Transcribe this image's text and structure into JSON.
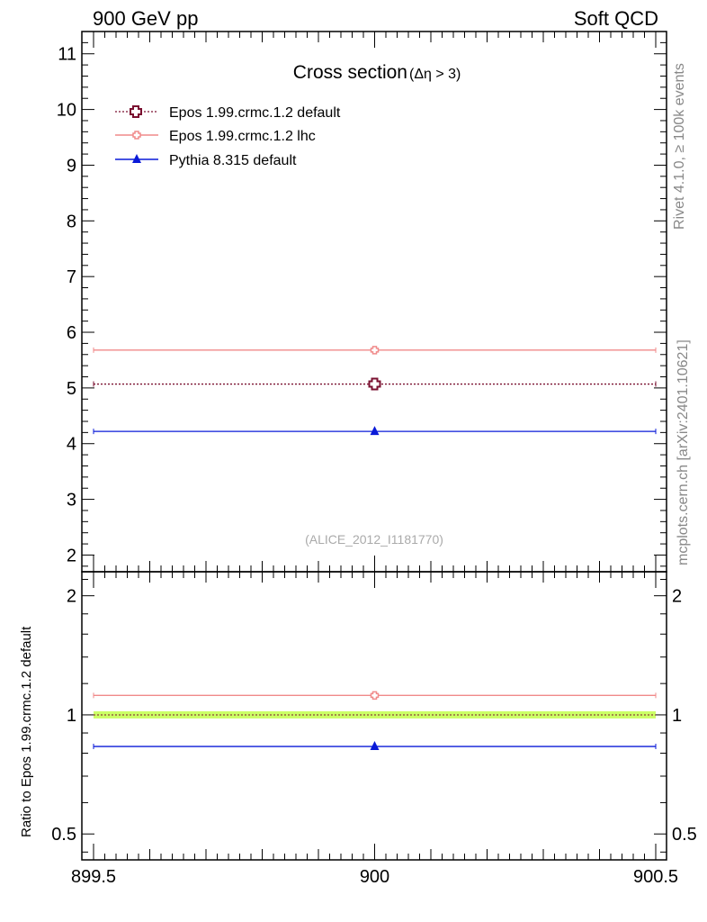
{
  "header": {
    "left": "900 GeV pp",
    "right": "Soft QCD"
  },
  "side_text": {
    "rivet": "Rivet 4.1.0, ≥ 100k events",
    "mcplots": "mcplots.cern.ch [arXiv:2401.10621]"
  },
  "colors": {
    "epos_default": "#7a1030",
    "epos_lhc": "#f08a8a",
    "pythia": "#0a1ad8",
    "ref_band": "#ccff66"
  },
  "chart_data": [
    {
      "type": "scatter",
      "panel": "main",
      "title": "Cross section",
      "title_suffix": "(Δη > 3)",
      "watermark": "(ALICE_2012_I1181770)",
      "x_range": [
        899.5,
        900.5
      ],
      "ylim": [
        1.7,
        11.4
      ],
      "y_ticks": [
        2,
        3,
        4,
        5,
        6,
        7,
        8,
        9,
        10,
        11
      ],
      "legend_position": "top-left",
      "series": [
        {
          "name": "Epos 1.99.crmc.1.2 default",
          "x": 900,
          "value": 5.07,
          "xerr": [
            899.5,
            900.5
          ],
          "marker": "open-cross",
          "line": "dotted",
          "color_key": "epos_default"
        },
        {
          "name": "Epos 1.99.crmc.1.2 lhc",
          "x": 900,
          "value": 5.68,
          "xerr": [
            899.5,
            900.5
          ],
          "marker": "open-cross-small",
          "line": "solid",
          "color_key": "epos_lhc"
        },
        {
          "name": "Pythia 8.315 default",
          "x": 900,
          "value": 4.22,
          "xerr": [
            899.5,
            900.5
          ],
          "marker": "triangle",
          "line": "solid",
          "color_key": "pythia"
        }
      ]
    },
    {
      "type": "scatter",
      "panel": "ratio",
      "ylabel": "Ratio to Epos 1.99.crmc.1.2 default",
      "scale": "log",
      "ylim": [
        0.43,
        2.3
      ],
      "y_ticks": [
        0.5,
        1,
        2
      ],
      "y_tick_labels": [
        "0.5",
        "1",
        "2"
      ],
      "x_ticks": [
        899.5,
        900,
        900.5
      ],
      "x_tick_labels": [
        "899.5",
        "900",
        "900.5"
      ],
      "reference": 1.0,
      "series": [
        {
          "name": "Epos 1.99.crmc.1.2 lhc",
          "x": 900,
          "value": 1.12,
          "xerr": [
            899.5,
            900.5
          ],
          "marker": "open-cross-small",
          "color_key": "epos_lhc"
        },
        {
          "name": "Pythia 8.315 default",
          "x": 900,
          "value": 0.832,
          "xerr": [
            899.5,
            900.5
          ],
          "marker": "triangle",
          "color_key": "pythia"
        }
      ]
    }
  ]
}
